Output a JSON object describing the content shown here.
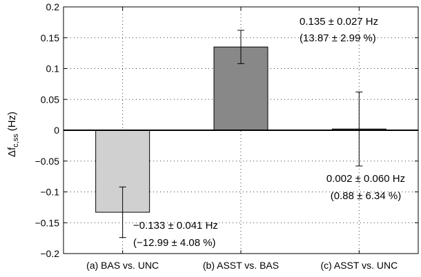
{
  "chart_data": {
    "type": "bar",
    "categories": [
      "(a) BAS vs. UNC",
      "(b) ASST vs. BAS",
      "(c) ASST vs. UNC"
    ],
    "values": [
      -0.133,
      0.135,
      0.002
    ],
    "errors": [
      0.041,
      0.027,
      0.06
    ],
    "bar_colors": [
      "#d0d0d0",
      "#888888",
      "#888888"
    ],
    "annotations": [
      {
        "line1": "−0.133 ± 0.041 Hz",
        "line2": "(−12.99 ± 4.08 %)"
      },
      {
        "line1": "0.135 ± 0.027 Hz",
        "line2": "(13.87 ± 2.99 %)"
      },
      {
        "line1": "0.002 ± 0.060 Hz",
        "line2": "(0.88 ± 6.34 %)"
      }
    ],
    "ylabel": {
      "main": "Δf",
      "sub": "c,ss",
      "unit": "(Hz)"
    },
    "ylim": [
      -0.2,
      0.2
    ],
    "yticks": [
      -0.2,
      -0.15,
      -0.1,
      -0.05,
      0,
      0.05,
      0.1,
      0.15,
      0.2
    ],
    "ytick_labels": [
      "−0.2",
      "−0.15",
      "−0.1",
      "−0.05",
      "0",
      "0.05",
      "0.1",
      "0.15",
      "0.2"
    ],
    "grid": "horizontal dotted",
    "title": ""
  }
}
